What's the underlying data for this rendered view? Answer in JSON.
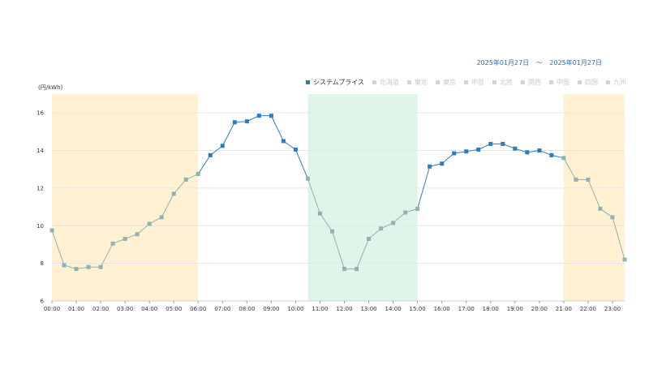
{
  "header": {
    "date_start": "2025年01月27日",
    "date_separator": "～",
    "date_end": "2025年01月27日"
  },
  "y_unit": "(円/kWh)",
  "legend": [
    {
      "label": "システムプライス",
      "active": true
    },
    {
      "label": "北海道",
      "active": false
    },
    {
      "label": "東北",
      "active": false
    },
    {
      "label": "東京",
      "active": false
    },
    {
      "label": "中部",
      "active": false
    },
    {
      "label": "北陸",
      "active": false
    },
    {
      "label": "関西",
      "active": false
    },
    {
      "label": "中国",
      "active": false
    },
    {
      "label": "四国",
      "active": false
    },
    {
      "label": "九州",
      "active": false
    }
  ],
  "chart_data": {
    "type": "line",
    "title": "",
    "xlabel": "",
    "ylabel": "(円/kWh)",
    "ylim": [
      6,
      17
    ],
    "yticks": [
      6,
      8,
      10,
      12,
      14,
      16
    ],
    "xticks": [
      "00:00",
      "01:00",
      "02:00",
      "03:00",
      "04:00",
      "05:00",
      "06:00",
      "07:00",
      "08:00",
      "09:00",
      "10:00",
      "11:00",
      "12:00",
      "13:00",
      "14:00",
      "15:00",
      "16:00",
      "17:00",
      "18:00",
      "19:00",
      "20:00",
      "21:00",
      "22:00",
      "23:00"
    ],
    "grid": true,
    "legend_position": "top-right",
    "series": [
      {
        "name": "システムプライス",
        "color": "#2f7bbf",
        "values": [
          9.75,
          7.9,
          7.7,
          7.8,
          7.8,
          9.05,
          9.3,
          9.55,
          10.1,
          10.45,
          11.7,
          12.45,
          12.75,
          13.75,
          14.25,
          15.5,
          15.55,
          15.85,
          15.85,
          14.5,
          14.05,
          12.5,
          10.65,
          9.7,
          7.7,
          7.7,
          9.3,
          9.85,
          10.15,
          10.7,
          10.9,
          13.15,
          13.3,
          13.85,
          13.95,
          14.05,
          14.35,
          14.35,
          14.1,
          13.9,
          14.0,
          13.75,
          13.6,
          12.45,
          12.45,
          10.9,
          10.45,
          8.2
        ]
      }
    ],
    "time_bands": [
      {
        "start": "00:00",
        "end": "06:00",
        "color": "#fff1d2"
      },
      {
        "start": "10:30",
        "end": "15:00",
        "color": "#dff5ea"
      },
      {
        "start": "21:00",
        "end": "24:00",
        "color": "#fff1d2"
      }
    ],
    "band_marker_color": "#8fb3b3"
  }
}
